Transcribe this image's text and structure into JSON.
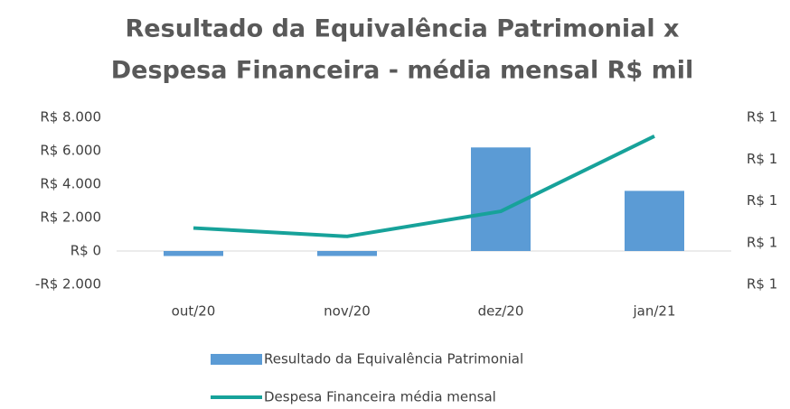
{
  "chart_data": {
    "type": "bar+line",
    "title": [
      "Resultado da Equivalência Patrimonial x",
      "Despesa Financeira - média mensal R$ mil"
    ],
    "categories": [
      "out/20",
      "nov/20",
      "dez/20",
      "jan/21"
    ],
    "series": [
      {
        "name": "Resultado da Equivalência Patrimonial",
        "type": "bar",
        "color": "#5b9bd5",
        "values": [
          -300,
          -300,
          6200,
          3600
        ]
      },
      {
        "name": "Despesa Financeira média mensal",
        "type": "line",
        "color": "#17a29a",
        "axis": "y2",
        "values": [
          0.87,
          0.83,
          0.95,
          1.31
        ]
      }
    ],
    "ylim": [
      -2000,
      8000
    ],
    "yticks": [
      {
        "value": -2000,
        "label": "-R$ 2.000"
      },
      {
        "value": 0,
        "label": "R$ 0"
      },
      {
        "value": 2000,
        "label": "R$ 2.000"
      },
      {
        "value": 4000,
        "label": "R$ 4.000"
      },
      {
        "value": 6000,
        "label": "R$ 6.000"
      },
      {
        "value": 8000,
        "label": "R$ 8.000"
      }
    ],
    "y2lim": [
      0.6,
      1.4
    ],
    "y2ticks": [
      {
        "value": 0.6,
        "label": "R$ 1"
      },
      {
        "value": 0.8,
        "label": "R$ 1"
      },
      {
        "value": 1.0,
        "label": "R$ 1"
      },
      {
        "value": 1.2,
        "label": "R$ 1"
      },
      {
        "value": 1.4,
        "label": "R$ 1"
      }
    ],
    "grid": false,
    "legend": "bottom"
  }
}
